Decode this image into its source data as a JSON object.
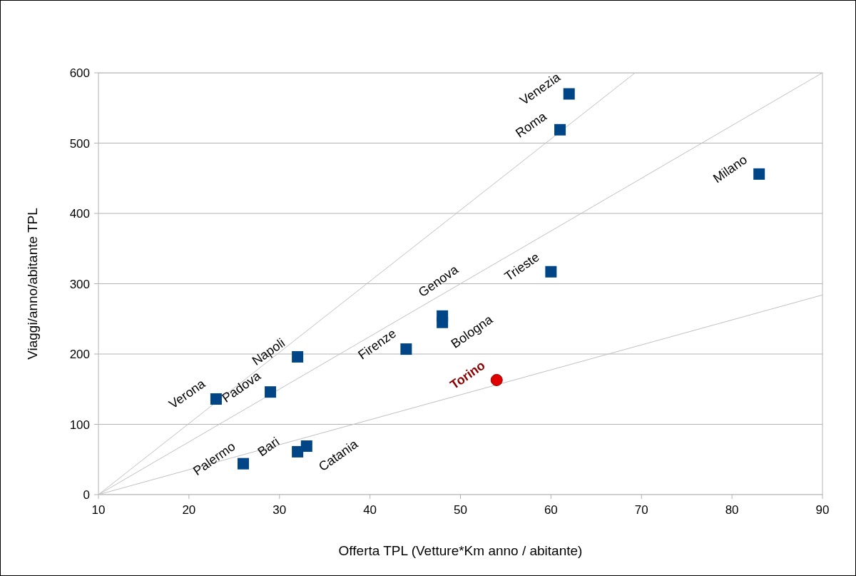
{
  "chart_data": {
    "type": "scatter",
    "xlabel": "Offerta TPL (Vetture*Km anno / abitante)",
    "ylabel": "Viaggi/anno/abitante TPL",
    "xlim": [
      10,
      90
    ],
    "xticks": [
      10,
      20,
      30,
      40,
      50,
      60,
      70,
      80,
      90
    ],
    "ylim": [
      0,
      600
    ],
    "yticks": [
      0,
      100,
      200,
      300,
      400,
      500,
      600
    ],
    "grid": "y",
    "legend": false,
    "series": [
      {
        "marker": "square",
        "color": "#004586",
        "x": [
          62,
          61,
          83,
          60,
          48,
          48,
          44,
          32,
          29,
          23,
          33,
          32,
          26
        ],
        "values": [
          570,
          519,
          456,
          317,
          254,
          245,
          207,
          196,
          146,
          136,
          69,
          61,
          44
        ]
      },
      {
        "marker": "circle",
        "color": "#e00000",
        "x": [
          54
        ],
        "values": [
          163
        ]
      },
      {
        "type": "line",
        "color": "#c0c0c0",
        "x": [
          10,
          69.3
        ],
        "values": [
          0,
          600
        ]
      },
      {
        "type": "line",
        "color": "#c0c0c0",
        "x": [
          10,
          90
        ],
        "values": [
          0,
          600
        ]
      },
      {
        "type": "line",
        "color": "#c0c0c0",
        "x": [
          10,
          90
        ],
        "values": [
          0,
          284
        ]
      }
    ],
    "annotations": [
      {
        "text": "Venezia",
        "x": 62,
        "y": 570
      },
      {
        "text": "Roma",
        "x": 61,
        "y": 519
      },
      {
        "text": "Milano",
        "x": 83,
        "y": 456
      },
      {
        "text": "Trieste",
        "x": 60,
        "y": 317
      },
      {
        "text": "Genova",
        "x": 48,
        "y": 254
      },
      {
        "text": "Bologna",
        "x": 48,
        "y": 245
      },
      {
        "text": "Firenze",
        "x": 44,
        "y": 207
      },
      {
        "text": "Napoli",
        "x": 32,
        "y": 196
      },
      {
        "text": "Padova",
        "x": 29,
        "y": 146
      },
      {
        "text": "Verona",
        "x": 23,
        "y": 136
      },
      {
        "text": "Torino",
        "x": 54,
        "y": 163
      },
      {
        "text": "Catania",
        "x": 33,
        "y": 69
      },
      {
        "text": "Bari",
        "x": 32,
        "y": 61
      },
      {
        "text": "Palermo",
        "x": 26,
        "y": 44
      }
    ]
  }
}
